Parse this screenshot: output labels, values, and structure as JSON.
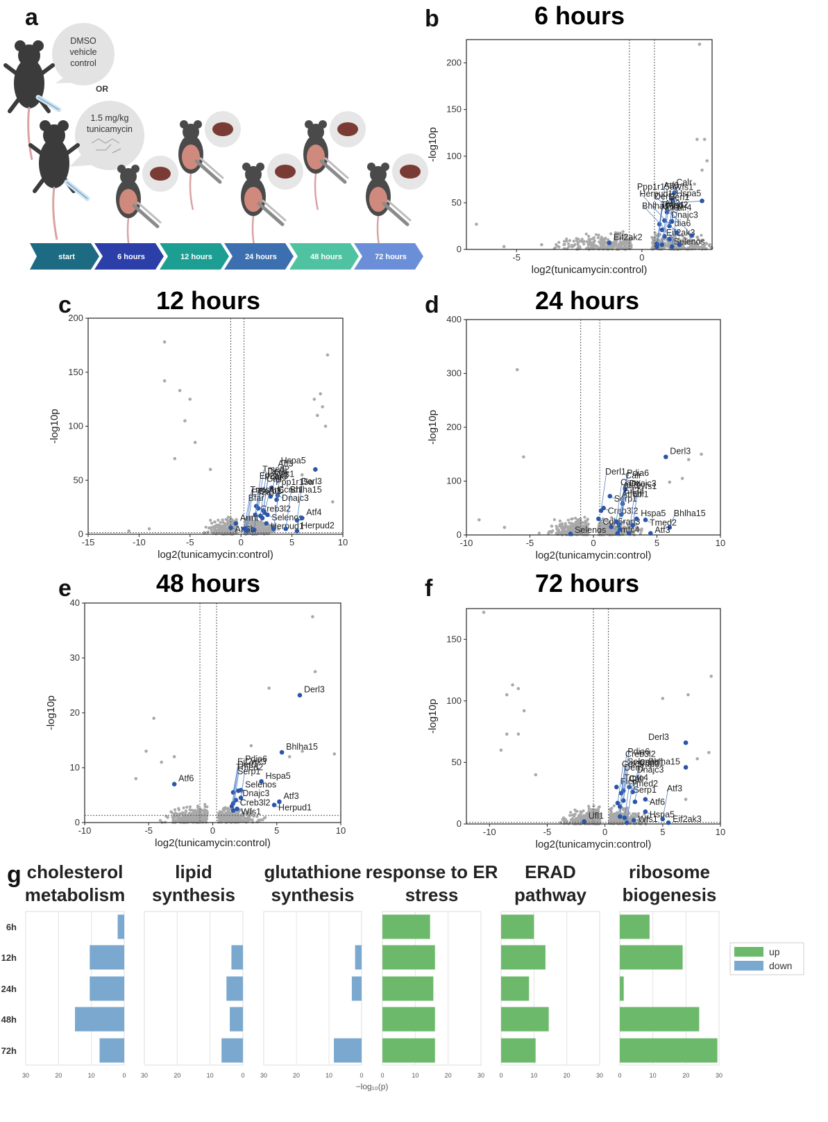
{
  "panel_letters": [
    "a",
    "b",
    "c",
    "d",
    "e",
    "f",
    "g"
  ],
  "panel_a": {
    "bubble1": [
      "DMSO",
      "vehicle",
      "control"
    ],
    "or": "OR",
    "bubble2": [
      "1.5 mg/kg",
      "tunicamycin"
    ],
    "timeline": [
      "start",
      "6 hours",
      "12 hours",
      "24 hours",
      "48 hours",
      "72 hours"
    ],
    "colors": [
      "#1d6b82",
      "#2c3fa8",
      "#1d9e93",
      "#3c6fb0",
      "#4fc3a1",
      "#6a8fd8"
    ]
  },
  "colors": {
    "highlight": "#2a56a8",
    "background_point": "#a9a9a9",
    "up": "#6cb96b",
    "down": "#7ba8cf",
    "label_line": "#4f7fc7"
  },
  "chart_data": [
    {
      "id": "b",
      "type": "scatter",
      "title": "6 hours",
      "xlabel": "log2(tunicamycin:control)",
      "ylabel": "-log10p",
      "xlim": [
        -7,
        2.8
      ],
      "ylim": [
        0,
        225
      ],
      "xticks": [
        -5,
        0
      ],
      "yticks": [
        0,
        50,
        100,
        150,
        200
      ],
      "vlines": [
        -0.5,
        0.5
      ],
      "bg": [
        [
          -6.6,
          27
        ],
        [
          2.3,
          220
        ],
        [
          2.2,
          118
        ],
        [
          2.5,
          118
        ],
        [
          2.6,
          95
        ],
        [
          2.4,
          85
        ],
        [
          2.1,
          70
        ],
        [
          -5.5,
          3
        ],
        [
          -4,
          5
        ],
        [
          -3,
          9
        ],
        [
          -2,
          5
        ],
        [
          -1.5,
          7
        ]
      ],
      "highlight": [
        {
          "label": "Ppp1r15a",
          "x": 1.3,
          "y": 61
        },
        {
          "label": "Hspa5",
          "x": 1.2,
          "y": 54
        },
        {
          "label": "Atf3",
          "x": 2.4,
          "y": 52
        },
        {
          "label": "Dnajc3",
          "x": 1.0,
          "y": 40
        },
        {
          "label": "Pdia6",
          "x": 0.9,
          "y": 31
        },
        {
          "label": "Atf6",
          "x": 0.7,
          "y": 27
        },
        {
          "label": "Calr",
          "x": 1.2,
          "y": 30
        },
        {
          "label": "Wfs1",
          "x": 1.1,
          "y": 25
        },
        {
          "label": "Eif2ak3",
          "x": 0.8,
          "y": 21
        },
        {
          "label": "Herpud1",
          "x": 1.4,
          "y": 18
        },
        {
          "label": "Derl1",
          "x": 0.9,
          "y": 14
        },
        {
          "label": "Derl3",
          "x": 2.0,
          "y": 15
        },
        {
          "label": "Selenos",
          "x": 1.1,
          "y": 11
        },
        {
          "label": "Eif2ak2",
          "x": -1.3,
          "y": 7
        },
        {
          "label": "Tmed2",
          "x": 0.6,
          "y": 6
        },
        {
          "label": "Ficd",
          "x": 0.8,
          "y": 5
        },
        {
          "label": "Bhlha15",
          "x": 1.5,
          "y": 5
        },
        {
          "label": "Nck1",
          "x": 0.6,
          "y": 3
        },
        {
          "label": "Atf4",
          "x": 1.2,
          "y": 3
        }
      ]
    },
    {
      "id": "c",
      "type": "scatter",
      "title": "12 hours",
      "xlabel": "log2(tunicamycin:control)",
      "ylabel": "-log10p",
      "xlim": [
        -15,
        10
      ],
      "ylim": [
        0,
        200
      ],
      "xticks": [
        -15,
        -10,
        -5,
        0,
        5,
        10
      ],
      "yticks": [
        0,
        50,
        100,
        150,
        200
      ],
      "vlines": [
        -1,
        0.3
      ],
      "hline": 1.5,
      "bg": [
        [
          -7.5,
          178
        ],
        [
          -7.5,
          142
        ],
        [
          -6,
          133
        ],
        [
          -5,
          125
        ],
        [
          -5.5,
          105
        ],
        [
          -4.5,
          85
        ],
        [
          -6.5,
          70
        ],
        [
          8.5,
          166
        ],
        [
          7.8,
          130
        ],
        [
          7.2,
          125
        ],
        [
          8,
          118
        ],
        [
          7.5,
          110
        ],
        [
          8.3,
          100
        ],
        [
          6,
          55
        ],
        [
          -9,
          5
        ],
        [
          -11,
          3
        ],
        [
          9,
          30
        ],
        [
          -3,
          60
        ],
        [
          4,
          62
        ]
      ],
      "highlight": [
        {
          "label": "Atf3",
          "x": 7.3,
          "y": 60
        },
        {
          "label": "Ppp1r15a",
          "x": 3.0,
          "y": 43
        },
        {
          "label": "Dnajc3",
          "x": 3.6,
          "y": 36
        },
        {
          "label": "Wfs1",
          "x": 2.9,
          "y": 35
        },
        {
          "label": "Hspa5",
          "x": 3.5,
          "y": 32
        },
        {
          "label": "Creb3l2",
          "x": 1.5,
          "y": 26
        },
        {
          "label": "Tmed2",
          "x": 1.7,
          "y": 24
        },
        {
          "label": "Derl1",
          "x": 2.2,
          "y": 22
        },
        {
          "label": "Atf6",
          "x": 2.3,
          "y": 20
        },
        {
          "label": "Selenos",
          "x": 2.6,
          "y": 18
        },
        {
          "label": "Eif2ak3",
          "x": 1.4,
          "y": 18
        },
        {
          "label": "Pdia6",
          "x": 1.9,
          "y": 17
        },
        {
          "label": "Calr",
          "x": 2.1,
          "y": 15
        },
        {
          "label": "Atf4",
          "x": 6.0,
          "y": 15
        },
        {
          "label": "Armt",
          "x": -0.5,
          "y": 10
        },
        {
          "label": "Herpud1",
          "x": 2.5,
          "y": 10
        },
        {
          "label": "Derl3",
          "x": 5.5,
          "y": 13
        },
        {
          "label": "Atf6b",
          "x": -1.0,
          "y": 6
        },
        {
          "label": "Bfar",
          "x": 0.3,
          "y": 5
        },
        {
          "label": "Tmtc4",
          "x": 0.5,
          "y": 5
        },
        {
          "label": "Ccnd1",
          "x": 3.2,
          "y": 5
        },
        {
          "label": "Bhlha15",
          "x": 4.4,
          "y": 5
        },
        {
          "label": "Eif2a",
          "x": 0.6,
          "y": 3
        },
        {
          "label": "Serp1",
          "x": 1.3,
          "y": 4
        },
        {
          "label": "Herpud2",
          "x": 5.5,
          "y": 3
        }
      ]
    },
    {
      "id": "d",
      "type": "scatter",
      "title": "24 hours",
      "xlabel": "log2(tunicamycin:control)",
      "ylabel": "-log10p",
      "xlim": [
        -10,
        10
      ],
      "ylim": [
        0,
        400
      ],
      "xticks": [
        -10,
        -5,
        0,
        5,
        10
      ],
      "yticks": [
        0,
        100,
        200,
        300,
        400
      ],
      "vlines": [
        -1,
        0.5
      ],
      "bg": [
        [
          -6,
          307
        ],
        [
          -5.5,
          145
        ],
        [
          8.5,
          150
        ],
        [
          7.5,
          140
        ],
        [
          7,
          105
        ],
        [
          6,
          98
        ],
        [
          -9,
          28
        ],
        [
          -7,
          14
        ]
      ],
      "highlight": [
        {
          "label": "Derl3",
          "x": 5.7,
          "y": 145
        },
        {
          "label": "Dnajc3",
          "x": 2.5,
          "y": 85
        },
        {
          "label": "Serp1",
          "x": 1.3,
          "y": 72
        },
        {
          "label": "Pdia6",
          "x": 2.3,
          "y": 58
        },
        {
          "label": "Creb3l2",
          "x": 0.8,
          "y": 50
        },
        {
          "label": "Derl1",
          "x": 0.6,
          "y": 45
        },
        {
          "label": "Calr",
          "x": 2.2,
          "y": 38
        },
        {
          "label": "Cdk5rap3",
          "x": 0.4,
          "y": 30
        },
        {
          "label": "Hspa5",
          "x": 3.4,
          "y": 30
        },
        {
          "label": "Tmed2",
          "x": 4.1,
          "y": 28
        },
        {
          "label": "Canx",
          "x": 1.8,
          "y": 25
        },
        {
          "label": "Atf6",
          "x": 2.0,
          "y": 20
        },
        {
          "label": "Wfs1",
          "x": 3.1,
          "y": 18
        },
        {
          "label": "Tmtc4",
          "x": 1.4,
          "y": 15
        },
        {
          "label": "Bhlha15",
          "x": 6.0,
          "y": 14
        },
        {
          "label": "Eif2a",
          "x": 2.1,
          "y": 10
        },
        {
          "label": "Selenos",
          "x": -1.8,
          "y": 2
        },
        {
          "label": "Atf6b",
          "x": 1.9,
          "y": 3
        },
        {
          "label": "Ufl1",
          "x": 2.8,
          "y": 3
        },
        {
          "label": "Atf3",
          "x": 4.5,
          "y": 3
        }
      ]
    },
    {
      "id": "e",
      "type": "scatter",
      "title": "48 hours",
      "xlabel": "log2(tunicamycin:control)",
      "ylabel": "-log10p",
      "xlim": [
        -10,
        10
      ],
      "ylim": [
        0,
        40
      ],
      "xticks": [
        -10,
        -5,
        0,
        5,
        10
      ],
      "yticks": [
        0,
        10,
        20,
        30,
        40
      ],
      "vlines": [
        -1,
        0.3
      ],
      "hline": 1.3,
      "bg": [
        [
          7.8,
          37.5
        ],
        [
          8,
          27.5
        ],
        [
          4.4,
          24.5
        ],
        [
          9.5,
          12.5
        ],
        [
          -4.6,
          19
        ],
        [
          -5.2,
          13
        ],
        [
          -4,
          11
        ],
        [
          -3,
          12
        ],
        [
          7,
          13
        ],
        [
          6,
          12
        ],
        [
          -6,
          8
        ],
        [
          3,
          14
        ]
      ],
      "highlight": [
        {
          "label": "Derl3",
          "x": 6.8,
          "y": 23.2
        },
        {
          "label": "Bhlha15",
          "x": 5.4,
          "y": 12.8
        },
        {
          "label": "Hspa5",
          "x": 3.8,
          "y": 7.5
        },
        {
          "label": "Atf6",
          "x": -3.0,
          "y": 7
        },
        {
          "label": "Selenos",
          "x": 2.2,
          "y": 5.9
        },
        {
          "label": "Dnajc3",
          "x": 2.0,
          "y": 5.8
        },
        {
          "label": "Eif2ak3",
          "x": 1.6,
          "y": 5.5
        },
        {
          "label": "Pdia6",
          "x": 2.2,
          "y": 4.5
        },
        {
          "label": "Creb3l2",
          "x": 1.8,
          "y": 4.1
        },
        {
          "label": "Derl1",
          "x": 1.6,
          "y": 3.5
        },
        {
          "label": "Tmed2",
          "x": 1.5,
          "y": 3.0
        },
        {
          "label": "Wfs1",
          "x": 1.9,
          "y": 2.5
        },
        {
          "label": "Atf3",
          "x": 5.2,
          "y": 3.8
        },
        {
          "label": "Herpud1",
          "x": 4.8,
          "y": 3.2
        },
        {
          "label": "Serp1",
          "x": 1.6,
          "y": 2.2
        }
      ]
    },
    {
      "id": "f",
      "type": "scatter",
      "title": "72 hours",
      "xlabel": "log2(tunicamycin:control)",
      "ylabel": "-log10p",
      "xlim": [
        -12,
        10
      ],
      "ylim": [
        0,
        175
      ],
      "xticks": [
        -10,
        -5,
        0,
        5,
        10
      ],
      "yticks": [
        0,
        50,
        100,
        150
      ],
      "vlines": [
        -1,
        0.3
      ],
      "hline": 1.3,
      "bg": [
        [
          -10.5,
          172
        ],
        [
          -8,
          113
        ],
        [
          -7.5,
          110
        ],
        [
          -8.5,
          105
        ],
        [
          -7,
          92
        ],
        [
          -7.5,
          73
        ],
        [
          -8.5,
          73
        ],
        [
          -9,
          60
        ],
        [
          9.2,
          120
        ],
        [
          7.2,
          105
        ],
        [
          5,
          102
        ],
        [
          9,
          58
        ],
        [
          8,
          53
        ],
        [
          -6,
          40
        ],
        [
          4,
          48
        ],
        [
          7,
          20
        ]
      ],
      "highlight": [
        {
          "label": "Derl3",
          "x": 7.0,
          "y": 66
        },
        {
          "label": "Bhlha15",
          "x": 7.0,
          "y": 46
        },
        {
          "label": "Ficd",
          "x": 1.0,
          "y": 30
        },
        {
          "label": "Serp1",
          "x": 2.1,
          "y": 30
        },
        {
          "label": "Pdia6",
          "x": 1.6,
          "y": 27
        },
        {
          "label": "Dnajc3",
          "x": 2.4,
          "y": 26
        },
        {
          "label": "Creb3l2",
          "x": 1.4,
          "y": 25
        },
        {
          "label": "Atf6",
          "x": 3.5,
          "y": 20
        },
        {
          "label": "Selenos",
          "x": 1.6,
          "y": 19
        },
        {
          "label": "Ccnd1",
          "x": 2.6,
          "y": 18
        },
        {
          "label": "Cdk5rap3",
          "x": 1.1,
          "y": 17
        },
        {
          "label": "Derl1",
          "x": 1.3,
          "y": 14
        },
        {
          "label": "Hspa5",
          "x": 3.5,
          "y": 10
        },
        {
          "label": "Tmtc4",
          "x": 1.3,
          "y": 6
        },
        {
          "label": "Calr",
          "x": 1.7,
          "y": 5
        },
        {
          "label": "Atf3",
          "x": 5.0,
          "y": 4
        },
        {
          "label": "Wfs1",
          "x": 2.5,
          "y": 3
        },
        {
          "label": "Ufl1",
          "x": -1.8,
          "y": 2
        },
        {
          "label": "Tmed2",
          "x": 1.9,
          "y": 1
        },
        {
          "label": "Eif2ak3",
          "x": 5.5,
          "y": 1
        }
      ]
    },
    {
      "id": "g",
      "type": "bar",
      "orientation": "horizontal",
      "categories": [
        "6h",
        "12h",
        "24h",
        "48h",
        "72h"
      ],
      "xlabel": "−log₁₀(p)",
      "xticks": [
        30,
        20,
        10,
        0
      ],
      "upticks": [
        0,
        10,
        20,
        30
      ],
      "xlim": [
        0,
        30
      ],
      "legend": {
        "up": "up",
        "down": "down"
      },
      "groups": [
        {
          "name": "cholesterol metabolism",
          "direction": "down",
          "values": [
            2,
            10.5,
            10.5,
            15,
            7.5
          ]
        },
        {
          "name": "lipid synthesis",
          "direction": "down",
          "values": [
            0,
            3.5,
            5,
            4,
            6.5
          ]
        },
        {
          "name": "glutathione synthesis",
          "direction": "down",
          "values": [
            0,
            2,
            3,
            0,
            8.5
          ]
        },
        {
          "name": "response to ER stress",
          "direction": "up",
          "values": [
            14.5,
            16,
            15.5,
            16,
            16
          ]
        },
        {
          "name": "ERAD pathway",
          "direction": "up",
          "values": [
            10,
            13.5,
            8.5,
            14.5,
            10.5
          ]
        },
        {
          "name": "ribosome biogenesis",
          "direction": "up",
          "values": [
            9,
            19,
            1.2,
            24,
            29.5
          ]
        }
      ]
    }
  ]
}
